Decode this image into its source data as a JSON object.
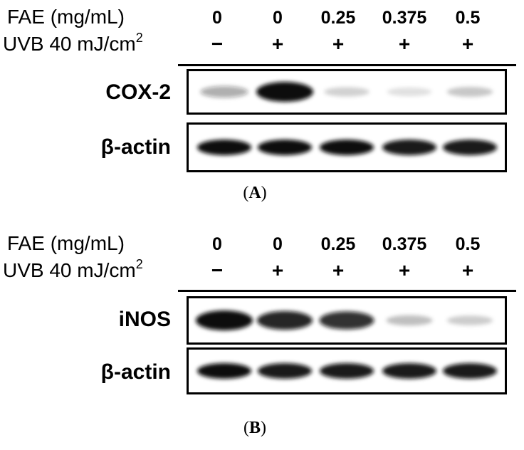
{
  "panels": [
    {
      "caption_open": "(",
      "caption_letter": "A",
      "caption_close": ")",
      "fae_label": "FAE (mg/mL)",
      "uvb_label": "UVB 40 mJ/cm",
      "uvb_sup": "2",
      "concentrations": [
        "0",
        "0",
        "0.25",
        "0.375",
        "0.5"
      ],
      "uvb_signs": [
        "−",
        "+",
        "+",
        "+",
        "+"
      ],
      "blots": [
        {
          "name": "COX-2",
          "band_intensity": [
            0.35,
            1.0,
            0.18,
            0.12,
            0.22
          ]
        },
        {
          "name": "β-actin",
          "band_intensity": [
            1.0,
            1.0,
            1.0,
            0.95,
            0.95
          ]
        }
      ]
    },
    {
      "caption_open": "(",
      "caption_letter": "B",
      "caption_close": ")",
      "fae_label": "FAE (mg/mL)",
      "uvb_label": "UVB 40 mJ/cm",
      "uvb_sup": "2",
      "concentrations": [
        "0",
        "0",
        "0.25",
        "0.375",
        "0.5"
      ],
      "uvb_signs": [
        "−",
        "+",
        "+",
        "+",
        "+"
      ],
      "blots": [
        {
          "name": "iNOS",
          "band_intensity": [
            1.0,
            0.9,
            0.85,
            0.25,
            0.2
          ]
        },
        {
          "name": "β-actin",
          "band_intensity": [
            1.0,
            0.95,
            0.95,
            0.95,
            0.95
          ]
        }
      ]
    }
  ]
}
